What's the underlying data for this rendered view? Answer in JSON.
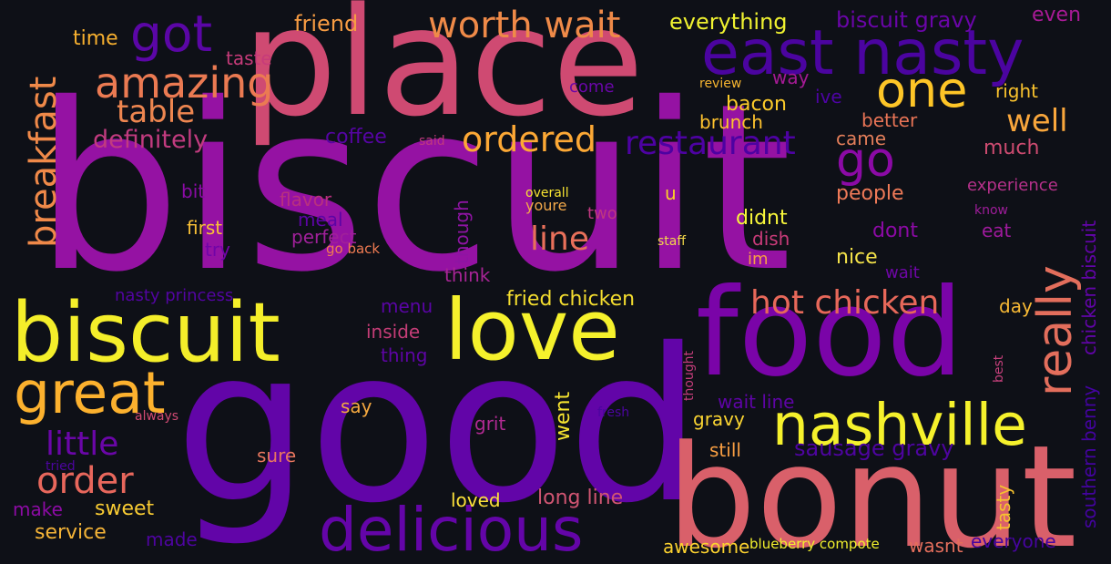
{
  "background_color": "#0e1017",
  "words": [
    {
      "text": "biscuit",
      "color": "#9512a3",
      "key": "biscuit-large"
    },
    {
      "text": "good",
      "color": "#6205a8",
      "key": "good"
    },
    {
      "text": "place",
      "color": "#cf4a72",
      "key": "place"
    },
    {
      "text": "bonut",
      "color": "#d9606a",
      "key": "bonut"
    },
    {
      "text": "food",
      "color": "#7a04a8",
      "key": "food"
    },
    {
      "text": "biscuit",
      "color": "#f4ee2a",
      "key": "biscuit-yellow"
    },
    {
      "text": "love",
      "color": "#f5f12c",
      "key": "love"
    },
    {
      "text": "nashville",
      "color": "#f5f12c",
      "key": "nashville"
    },
    {
      "text": "delicious",
      "color": "#6405a8",
      "key": "delicious"
    },
    {
      "text": "east nasty",
      "color": "#4b04a0",
      "key": "east-nasty"
    },
    {
      "text": "great",
      "color": "#fcb12e",
      "key": "great"
    },
    {
      "text": "got",
      "color": "#5b06a6",
      "key": "got"
    },
    {
      "text": "one",
      "color": "#fdc527",
      "key": "one"
    },
    {
      "text": "really",
      "color": "#e36e5c",
      "key": "really"
    },
    {
      "text": "go",
      "color": "#8b0aa5",
      "key": "go"
    },
    {
      "text": "amazing",
      "color": "#eb7a52",
      "key": "amazing"
    },
    {
      "text": "worth wait",
      "color": "#ef8a48",
      "key": "worth-wait"
    },
    {
      "text": "ordered",
      "color": "#fca835",
      "key": "ordered"
    },
    {
      "text": "restaurant",
      "color": "#4d02a2",
      "key": "restaurant"
    },
    {
      "text": "hot chicken",
      "color": "#e7685a",
      "key": "hot-chicken"
    },
    {
      "text": "order",
      "color": "#e8675c",
      "key": "order"
    },
    {
      "text": "line",
      "color": "#e8705a",
      "key": "line"
    },
    {
      "text": "breakfast",
      "color": "#ef8949",
      "key": "breakfast"
    },
    {
      "text": "table",
      "color": "#ee8650",
      "key": "table"
    },
    {
      "text": "well",
      "color": "#f8a63c",
      "key": "well"
    },
    {
      "text": "little",
      "color": "#6a06a8",
      "key": "little"
    },
    {
      "text": "definitely",
      "color": "#c13b7f",
      "key": "definitely"
    },
    {
      "text": "sausage gravy",
      "color": "#4e04a0",
      "key": "sausage-gravy"
    },
    {
      "text": "biscuit gravy",
      "color": "#6a05a8",
      "key": "biscuit-gravy"
    },
    {
      "text": "everything",
      "color": "#f0f230",
      "key": "everything"
    },
    {
      "text": "friend",
      "color": "#f79c43",
      "key": "friend"
    },
    {
      "text": "time",
      "color": "#f7b02f",
      "key": "time"
    },
    {
      "text": "even",
      "color": "#a81a96",
      "key": "even"
    },
    {
      "text": "taste",
      "color": "#c73b7a",
      "key": "taste"
    },
    {
      "text": "coffee",
      "color": "#5504a2",
      "key": "coffee"
    },
    {
      "text": "bacon",
      "color": "#fbcb2a",
      "key": "bacon"
    },
    {
      "text": "brunch",
      "color": "#fdc22e",
      "key": "brunch"
    },
    {
      "text": "come",
      "color": "#6a06a8",
      "key": "come"
    },
    {
      "text": "review",
      "color": "#f6b530",
      "key": "review"
    },
    {
      "text": "way",
      "color": "#a41a94",
      "key": "way"
    },
    {
      "text": "ive",
      "color": "#4d03a3",
      "key": "ive"
    },
    {
      "text": "right",
      "color": "#f9c22d",
      "key": "right"
    },
    {
      "text": "better",
      "color": "#e97456",
      "key": "better"
    },
    {
      "text": "came",
      "color": "#e37e5a",
      "key": "came"
    },
    {
      "text": "much",
      "color": "#cd4b70",
      "key": "much"
    },
    {
      "text": "said",
      "color": "#c0397f",
      "key": "said"
    },
    {
      "text": "bit",
      "color": "#8a0ba4",
      "key": "bit"
    },
    {
      "text": "flavor",
      "color": "#b8307f",
      "key": "flavor"
    },
    {
      "text": "meal",
      "color": "#5d04a5",
      "key": "meal"
    },
    {
      "text": "overall",
      "color": "#f7e331",
      "key": "overall"
    },
    {
      "text": "youre",
      "color": "#f2a84a",
      "key": "youre"
    },
    {
      "text": "u",
      "color": "#fcd326",
      "key": "u"
    },
    {
      "text": "two",
      "color": "#be377f",
      "key": "two"
    },
    {
      "text": "people",
      "color": "#ef7a58",
      "key": "people"
    },
    {
      "text": "experience",
      "color": "#b5318a",
      "key": "experience"
    },
    {
      "text": "know",
      "color": "#9e1d9a",
      "key": "know"
    },
    {
      "text": "eat",
      "color": "#9e1a9c",
      "key": "eat"
    },
    {
      "text": "dont",
      "color": "#8c0aa5",
      "key": "dont"
    },
    {
      "text": "didnt",
      "color": "#f8f73a",
      "key": "didnt"
    },
    {
      "text": "dish",
      "color": "#c93b79",
      "key": "dish"
    },
    {
      "text": "im",
      "color": "#f69e45",
      "key": "im"
    },
    {
      "text": "nice",
      "color": "#f5e44a",
      "key": "nice"
    },
    {
      "text": "wait",
      "color": "#6e06a6",
      "key": "wait"
    },
    {
      "text": "first",
      "color": "#f9c036",
      "key": "first"
    },
    {
      "text": "try",
      "color": "#7104a8",
      "key": "try"
    },
    {
      "text": "perfect",
      "color": "#a0209a",
      "key": "perfect"
    },
    {
      "text": "go back",
      "color": "#f07b52",
      "key": "go-back"
    },
    {
      "text": "staff",
      "color": "#f3d74a",
      "key": "staff"
    },
    {
      "text": "though",
      "color": "#8e14a3",
      "key": "though"
    },
    {
      "text": "think",
      "color": "#a82496",
      "key": "think"
    },
    {
      "text": "nasty princess",
      "color": "#5304a2",
      "key": "nasty-princess"
    },
    {
      "text": "menu",
      "color": "#5a04a5",
      "key": "menu"
    },
    {
      "text": "fried chicken",
      "color": "#f5de2f",
      "key": "fried-chicken"
    },
    {
      "text": "inside",
      "color": "#c53d77",
      "key": "inside"
    },
    {
      "text": "thing",
      "color": "#5e04a5",
      "key": "thing"
    },
    {
      "text": "day",
      "color": "#f7b935",
      "key": "day"
    },
    {
      "text": "southern benny",
      "color": "#4403a0",
      "key": "southern-benny"
    },
    {
      "text": "chicken biscuit",
      "color": "#6204a8",
      "key": "chicken-biscuit"
    },
    {
      "text": "thought",
      "color": "#c33d7a",
      "key": "thought"
    },
    {
      "text": "best",
      "color": "#c6407c",
      "key": "best"
    },
    {
      "text": "wait line",
      "color": "#5e04a6",
      "key": "wait-line"
    },
    {
      "text": "always",
      "color": "#cf4a72",
      "key": "always"
    },
    {
      "text": "say",
      "color": "#f5a940",
      "key": "say"
    },
    {
      "text": "fresh",
      "color": "#4b04a0",
      "key": "fresh"
    },
    {
      "text": "gravy",
      "color": "#fbd532",
      "key": "gravy"
    },
    {
      "text": "grit",
      "color": "#b12a92",
      "key": "grit"
    },
    {
      "text": "went",
      "color": "#f7e530",
      "key": "went"
    },
    {
      "text": "sure",
      "color": "#e8765e",
      "key": "sure"
    },
    {
      "text": "still",
      "color": "#f89e42",
      "key": "still"
    },
    {
      "text": "tried",
      "color": "#4d04a0",
      "key": "tried"
    },
    {
      "text": "make",
      "color": "#8d0ba5",
      "key": "make"
    },
    {
      "text": "sweet",
      "color": "#f8cb33",
      "key": "sweet"
    },
    {
      "text": "loved",
      "color": "#fbe03a",
      "key": "loved"
    },
    {
      "text": "long line",
      "color": "#d05572",
      "key": "long-line"
    },
    {
      "text": "tasty",
      "color": "#f6c22e",
      "key": "tasty"
    },
    {
      "text": "service",
      "color": "#f5b437",
      "key": "service"
    },
    {
      "text": "made",
      "color": "#4e04a0",
      "key": "made"
    },
    {
      "text": "awesome",
      "color": "#fcd22f",
      "key": "awesome"
    },
    {
      "text": "blueberry compote",
      "color": "#f2f02d",
      "key": "blueberry-compote"
    },
    {
      "text": "wasnt",
      "color": "#e36e5c",
      "key": "wasnt"
    },
    {
      "text": "everyone",
      "color": "#4704a0",
      "key": "everyone"
    }
  ]
}
